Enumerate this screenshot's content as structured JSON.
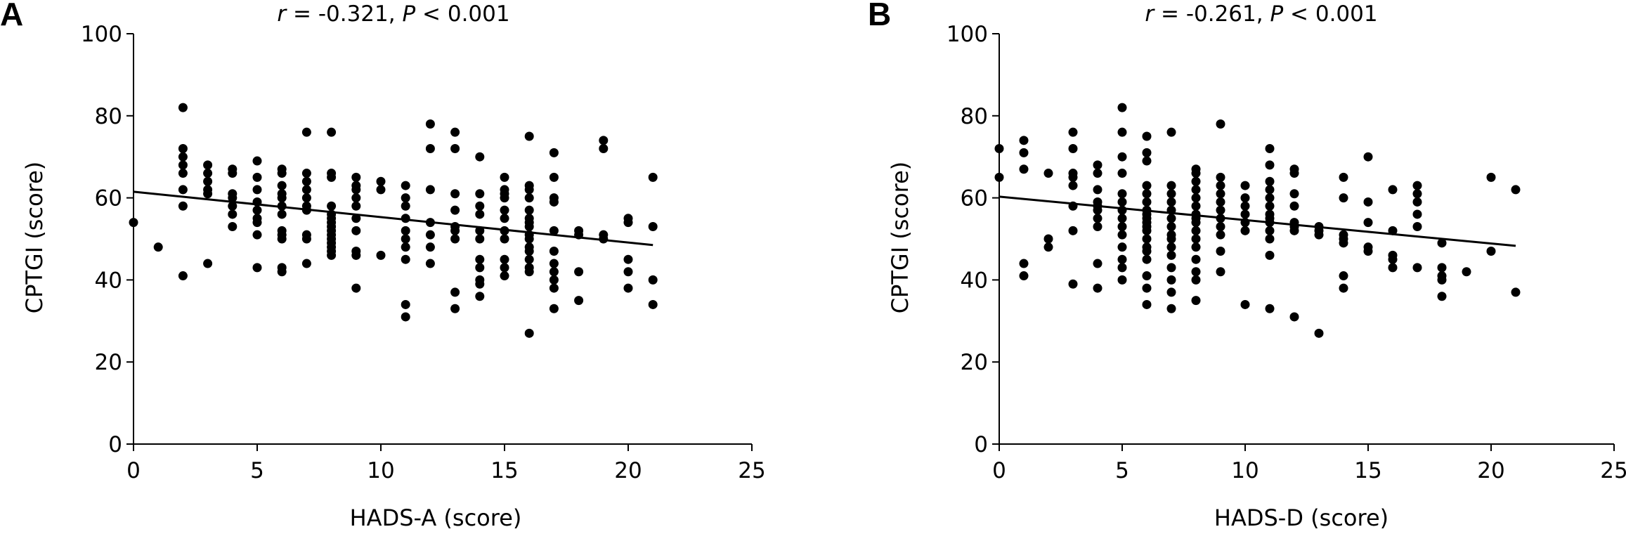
{
  "chart_data": [
    {
      "type": "scatter",
      "panel_label": "A",
      "annotation": {
        "r_symbol": "r",
        "r_value": "= -0.321,",
        "p_symbol": "P",
        "p_value": "< 0.001"
      },
      "xlabel": "HADS-A (score)",
      "ylabel": "CPTGI (score)",
      "xlim": [
        0,
        25
      ],
      "ylim": [
        0,
        100
      ],
      "xticks": [
        0,
        5,
        10,
        15,
        20,
        25
      ],
      "yticks": [
        0,
        20,
        40,
        60,
        80,
        100
      ],
      "grid": false,
      "regression_line": [
        [
          0,
          61.5
        ],
        [
          21,
          48.5
        ]
      ],
      "points": [
        [
          0,
          54
        ],
        [
          1,
          48
        ],
        [
          2,
          82
        ],
        [
          2,
          72
        ],
        [
          2,
          70
        ],
        [
          2,
          68
        ],
        [
          2,
          66
        ],
        [
          2,
          62
        ],
        [
          2,
          58
        ],
        [
          2,
          41
        ],
        [
          3,
          68
        ],
        [
          3,
          66
        ],
        [
          3,
          64
        ],
        [
          3,
          62
        ],
        [
          3,
          61
        ],
        [
          3,
          44
        ],
        [
          4,
          67
        ],
        [
          4,
          66
        ],
        [
          4,
          61
        ],
        [
          4,
          60
        ],
        [
          4,
          58
        ],
        [
          4,
          56
        ],
        [
          4,
          53
        ],
        [
          5,
          69
        ],
        [
          5,
          65
        ],
        [
          5,
          62
        ],
        [
          5,
          59
        ],
        [
          5,
          57
        ],
        [
          5,
          55
        ],
        [
          5,
          54
        ],
        [
          5,
          51
        ],
        [
          5,
          43
        ],
        [
          6,
          67
        ],
        [
          6,
          66
        ],
        [
          6,
          63
        ],
        [
          6,
          61
        ],
        [
          6,
          60
        ],
        [
          6,
          58
        ],
        [
          6,
          56
        ],
        [
          6,
          52
        ],
        [
          6,
          51
        ],
        [
          6,
          50
        ],
        [
          6,
          43
        ],
        [
          6,
          42
        ],
        [
          7,
          76
        ],
        [
          7,
          66
        ],
        [
          7,
          64
        ],
        [
          7,
          62
        ],
        [
          7,
          60
        ],
        [
          7,
          58
        ],
        [
          7,
          57
        ],
        [
          7,
          51
        ],
        [
          7,
          50
        ],
        [
          7,
          44
        ],
        [
          8,
          76
        ],
        [
          8,
          66
        ],
        [
          8,
          65
        ],
        [
          8,
          58
        ],
        [
          8,
          56
        ],
        [
          8,
          55
        ],
        [
          8,
          54
        ],
        [
          8,
          53
        ],
        [
          8,
          52
        ],
        [
          8,
          51
        ],
        [
          8,
          50
        ],
        [
          8,
          49
        ],
        [
          8,
          48
        ],
        [
          8,
          47
        ],
        [
          8,
          46
        ],
        [
          9,
          65
        ],
        [
          9,
          63
        ],
        [
          9,
          62
        ],
        [
          9,
          60
        ],
        [
          9,
          58
        ],
        [
          9,
          55
        ],
        [
          9,
          52
        ],
        [
          9,
          47
        ],
        [
          9,
          46
        ],
        [
          9,
          38
        ],
        [
          10,
          64
        ],
        [
          10,
          62
        ],
        [
          10,
          46
        ],
        [
          11,
          63
        ],
        [
          11,
          60
        ],
        [
          11,
          58
        ],
        [
          11,
          55
        ],
        [
          11,
          52
        ],
        [
          11,
          50
        ],
        [
          11,
          48
        ],
        [
          11,
          45
        ],
        [
          11,
          34
        ],
        [
          11,
          31
        ],
        [
          12,
          78
        ],
        [
          12,
          72
        ],
        [
          12,
          62
        ],
        [
          12,
          54
        ],
        [
          12,
          51
        ],
        [
          12,
          48
        ],
        [
          12,
          44
        ],
        [
          13,
          76
        ],
        [
          13,
          72
        ],
        [
          13,
          61
        ],
        [
          13,
          57
        ],
        [
          13,
          53
        ],
        [
          13,
          52
        ],
        [
          13,
          50
        ],
        [
          13,
          37
        ],
        [
          13,
          33
        ],
        [
          14,
          70
        ],
        [
          14,
          61
        ],
        [
          14,
          58
        ],
        [
          14,
          56
        ],
        [
          14,
          52
        ],
        [
          14,
          50
        ],
        [
          14,
          45
        ],
        [
          14,
          43
        ],
        [
          14,
          40
        ],
        [
          14,
          39
        ],
        [
          14,
          36
        ],
        [
          15,
          65
        ],
        [
          15,
          62
        ],
        [
          15,
          61
        ],
        [
          15,
          60
        ],
        [
          15,
          57
        ],
        [
          15,
          55
        ],
        [
          15,
          52
        ],
        [
          15,
          50
        ],
        [
          15,
          45
        ],
        [
          15,
          43
        ],
        [
          15,
          41
        ],
        [
          16,
          75
        ],
        [
          16,
          63
        ],
        [
          16,
          62
        ],
        [
          16,
          60
        ],
        [
          16,
          57
        ],
        [
          16,
          55
        ],
        [
          16,
          54
        ],
        [
          16,
          53
        ],
        [
          16,
          51
        ],
        [
          16,
          50
        ],
        [
          16,
          48
        ],
        [
          16,
          47
        ],
        [
          16,
          45
        ],
        [
          16,
          43
        ],
        [
          16,
          42
        ],
        [
          16,
          27
        ],
        [
          17,
          71
        ],
        [
          17,
          65
        ],
        [
          17,
          60
        ],
        [
          17,
          59
        ],
        [
          17,
          52
        ],
        [
          17,
          47
        ],
        [
          17,
          44
        ],
        [
          17,
          42
        ],
        [
          17,
          40
        ],
        [
          17,
          38
        ],
        [
          17,
          33
        ],
        [
          18,
          52
        ],
        [
          18,
          51
        ],
        [
          18,
          42
        ],
        [
          18,
          35
        ],
        [
          19,
          74
        ],
        [
          19,
          72
        ],
        [
          19,
          51
        ],
        [
          19,
          50
        ],
        [
          20,
          55
        ],
        [
          20,
          54
        ],
        [
          20,
          45
        ],
        [
          20,
          42
        ],
        [
          20,
          38
        ],
        [
          21,
          65
        ],
        [
          21,
          53
        ],
        [
          21,
          40
        ],
        [
          21,
          34
        ]
      ]
    },
    {
      "type": "scatter",
      "panel_label": "B",
      "annotation": {
        "r_symbol": "r",
        "r_value": "= -0.261,",
        "p_symbol": "P",
        "p_value": "< 0.001"
      },
      "xlabel": "HADS-D (score)",
      "ylabel": "CPTGI (score)",
      "xlim": [
        0,
        25
      ],
      "ylim": [
        0,
        100
      ],
      "xticks": [
        0,
        5,
        10,
        15,
        20,
        25
      ],
      "yticks": [
        0,
        20,
        40,
        60,
        80,
        100
      ],
      "grid": false,
      "regression_line": [
        [
          0,
          60.3
        ],
        [
          21,
          48.3
        ]
      ],
      "points": [
        [
          0,
          72
        ],
        [
          0,
          65
        ],
        [
          1,
          74
        ],
        [
          1,
          71
        ],
        [
          1,
          67
        ],
        [
          1,
          44
        ],
        [
          1,
          41
        ],
        [
          2,
          66
        ],
        [
          2,
          50
        ],
        [
          2,
          48
        ],
        [
          3,
          76
        ],
        [
          3,
          72
        ],
        [
          3,
          66
        ],
        [
          3,
          65
        ],
        [
          3,
          63
        ],
        [
          3,
          58
        ],
        [
          3,
          52
        ],
        [
          3,
          39
        ],
        [
          4,
          68
        ],
        [
          4,
          66
        ],
        [
          4,
          62
        ],
        [
          4,
          59
        ],
        [
          4,
          58
        ],
        [
          4,
          57
        ],
        [
          4,
          55
        ],
        [
          4,
          53
        ],
        [
          4,
          44
        ],
        [
          4,
          38
        ],
        [
          5,
          82
        ],
        [
          5,
          76
        ],
        [
          5,
          70
        ],
        [
          5,
          66
        ],
        [
          5,
          61
        ],
        [
          5,
          59
        ],
        [
          5,
          57
        ],
        [
          5,
          55
        ],
        [
          5,
          53
        ],
        [
          5,
          51
        ],
        [
          5,
          48
        ],
        [
          5,
          45
        ],
        [
          5,
          43
        ],
        [
          5,
          40
        ],
        [
          6,
          75
        ],
        [
          6,
          71
        ],
        [
          6,
          69
        ],
        [
          6,
          63
        ],
        [
          6,
          61
        ],
        [
          6,
          59
        ],
        [
          6,
          57
        ],
        [
          6,
          56
        ],
        [
          6,
          55
        ],
        [
          6,
          54
        ],
        [
          6,
          53
        ],
        [
          6,
          52
        ],
        [
          6,
          50
        ],
        [
          6,
          48
        ],
        [
          6,
          47
        ],
        [
          6,
          45
        ],
        [
          6,
          41
        ],
        [
          6,
          38
        ],
        [
          6,
          34
        ],
        [
          7,
          76
        ],
        [
          7,
          63
        ],
        [
          7,
          61
        ],
        [
          7,
          59
        ],
        [
          7,
          57
        ],
        [
          7,
          55
        ],
        [
          7,
          53
        ],
        [
          7,
          51
        ],
        [
          7,
          50
        ],
        [
          7,
          48
        ],
        [
          7,
          46
        ],
        [
          7,
          43
        ],
        [
          7,
          40
        ],
        [
          7,
          37
        ],
        [
          7,
          33
        ],
        [
          8,
          67
        ],
        [
          8,
          66
        ],
        [
          8,
          64
        ],
        [
          8,
          62
        ],
        [
          8,
          60
        ],
        [
          8,
          58
        ],
        [
          8,
          56
        ],
        [
          8,
          55
        ],
        [
          8,
          54
        ],
        [
          8,
          52
        ],
        [
          8,
          50
        ],
        [
          8,
          48
        ],
        [
          8,
          45
        ],
        [
          8,
          42
        ],
        [
          8,
          40
        ],
        [
          8,
          35
        ],
        [
          9,
          78
        ],
        [
          9,
          65
        ],
        [
          9,
          63
        ],
        [
          9,
          61
        ],
        [
          9,
          59
        ],
        [
          9,
          57
        ],
        [
          9,
          55
        ],
        [
          9,
          53
        ],
        [
          9,
          51
        ],
        [
          9,
          47
        ],
        [
          9,
          42
        ],
        [
          10,
          63
        ],
        [
          10,
          60
        ],
        [
          10,
          58
        ],
        [
          10,
          56
        ],
        [
          10,
          54
        ],
        [
          10,
          52
        ],
        [
          10,
          34
        ],
        [
          11,
          72
        ],
        [
          11,
          68
        ],
        [
          11,
          64
        ],
        [
          11,
          62
        ],
        [
          11,
          60
        ],
        [
          11,
          58
        ],
        [
          11,
          56
        ],
        [
          11,
          55
        ],
        [
          11,
          54
        ],
        [
          11,
          52
        ],
        [
          11,
          50
        ],
        [
          11,
          46
        ],
        [
          11,
          33
        ],
        [
          12,
          67
        ],
        [
          12,
          66
        ],
        [
          12,
          61
        ],
        [
          12,
          58
        ],
        [
          12,
          54
        ],
        [
          12,
          53
        ],
        [
          12,
          52
        ],
        [
          12,
          31
        ],
        [
          13,
          53
        ],
        [
          13,
          52
        ],
        [
          13,
          51
        ],
        [
          13,
          27
        ],
        [
          14,
          65
        ],
        [
          14,
          60
        ],
        [
          14,
          51
        ],
        [
          14,
          50
        ],
        [
          14,
          49
        ],
        [
          14,
          41
        ],
        [
          14,
          38
        ],
        [
          15,
          70
        ],
        [
          15,
          59
        ],
        [
          15,
          54
        ],
        [
          15,
          48
        ],
        [
          15,
          47
        ],
        [
          16,
          62
        ],
        [
          16,
          52
        ],
        [
          16,
          46
        ],
        [
          16,
          45
        ],
        [
          16,
          43
        ],
        [
          17,
          63
        ],
        [
          17,
          61
        ],
        [
          17,
          59
        ],
        [
          17,
          56
        ],
        [
          17,
          53
        ],
        [
          17,
          43
        ],
        [
          18,
          49
        ],
        [
          18,
          43
        ],
        [
          18,
          41
        ],
        [
          18,
          40
        ],
        [
          18,
          36
        ],
        [
          19,
          42
        ],
        [
          20,
          65
        ],
        [
          20,
          47
        ],
        [
          21,
          62
        ],
        [
          21,
          37
        ]
      ]
    }
  ]
}
